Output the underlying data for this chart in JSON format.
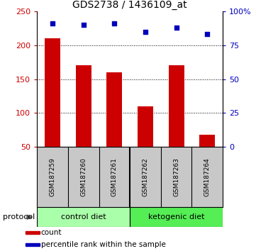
{
  "title": "GDS2738 / 1436109_at",
  "categories": [
    "GSM187259",
    "GSM187260",
    "GSM187261",
    "GSM187262",
    "GSM187263",
    "GSM187264"
  ],
  "bar_values": [
    210,
    170,
    160,
    110,
    170,
    68
  ],
  "scatter_values_pct": [
    91,
    90,
    91,
    85,
    88,
    83
  ],
  "bar_color": "#cc0000",
  "scatter_color": "#0000bb",
  "ylim_left": [
    50,
    250
  ],
  "ylim_right": [
    0,
    100
  ],
  "yticks_left": [
    50,
    100,
    150,
    200,
    250
  ],
  "ytick_labels_left": [
    "50",
    "100",
    "150",
    "200",
    "250"
  ],
  "yticks_right": [
    0,
    25,
    50,
    75,
    100
  ],
  "ytick_labels_right": [
    "0",
    "25",
    "50",
    "75",
    "100%"
  ],
  "grid_values": [
    100,
    150,
    200
  ],
  "control_color": "#aaffaa",
  "keto_color": "#55ee55",
  "protocol_label": "protocol",
  "legend_items": [
    {
      "color": "#cc0000",
      "label": "count"
    },
    {
      "color": "#0000bb",
      "label": "percentile rank within the sample"
    }
  ],
  "background_color": "#ffffff",
  "label_area_color": "#c8c8c8",
  "bar_bottom": 50,
  "bar_width": 0.5
}
